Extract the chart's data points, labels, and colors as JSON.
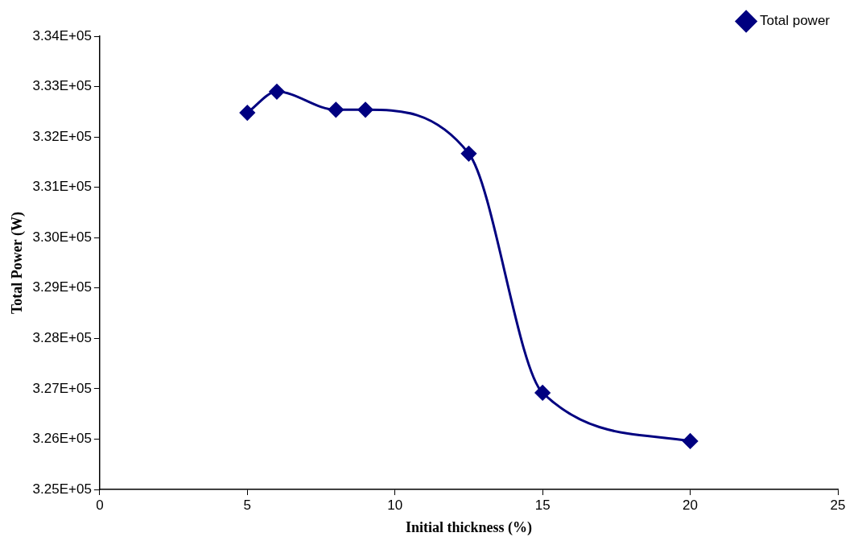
{
  "chart_data": {
    "type": "line",
    "xlabel": "Initial thickness (%)",
    "ylabel": "Total Power (W)",
    "x": [
      5,
      6,
      8,
      9,
      12.5,
      15,
      20
    ],
    "series": [
      {
        "name": "Total power",
        "color": "#000080",
        "values": [
          332480,
          332900,
          332540,
          332540,
          331670,
          326920,
          325960
        ]
      }
    ],
    "xlim": [
      0,
      25
    ],
    "xticks": [
      0,
      5,
      10,
      15,
      20,
      25
    ],
    "ylim": [
      325000,
      334000
    ],
    "yticks": [
      {
        "value": 325000,
        "label": "3.25E+05"
      },
      {
        "value": 326000,
        "label": "3.26E+05"
      },
      {
        "value": 327000,
        "label": "3.27E+05"
      },
      {
        "value": 328000,
        "label": "3.28E+05"
      },
      {
        "value": 329000,
        "label": "3.29E+05"
      },
      {
        "value": 330000,
        "label": "3.30E+05"
      },
      {
        "value": 331000,
        "label": "3.31E+05"
      },
      {
        "value": 332000,
        "label": "3.32E+05"
      },
      {
        "value": 333000,
        "label": "3.33E+05"
      },
      {
        "value": 334000,
        "label": "3.34E+05"
      }
    ],
    "grid": false,
    "legend": "top right",
    "marker": "diamond",
    "line_style": "solid"
  }
}
